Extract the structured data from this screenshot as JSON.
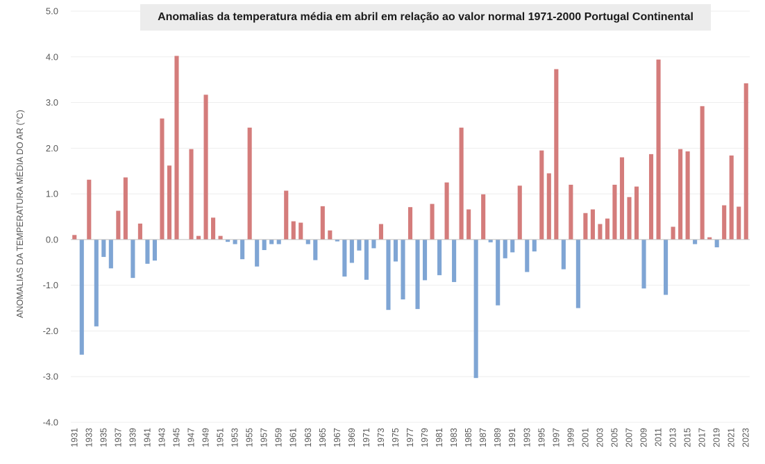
{
  "chart_data": {
    "type": "bar",
    "title": "Anomalias da temperatura média em abril em relação ao valor normal 1971-2000 Portugal Continental",
    "xlabel": "",
    "ylabel": "ANOMALIAS DA TEMPERATURA MÉDIA DO AR (°C)",
    "ylim": [
      -4.0,
      5.0
    ],
    "yticks": [
      "5.0",
      "4.0",
      "3.0",
      "2.0",
      "1.0",
      "0.0",
      "-1.0",
      "-2.0",
      "-3.0",
      "-4.0"
    ],
    "categories": [
      1931,
      1932,
      1933,
      1934,
      1935,
      1936,
      1937,
      1938,
      1939,
      1940,
      1941,
      1942,
      1943,
      1944,
      1945,
      1946,
      1947,
      1948,
      1949,
      1950,
      1951,
      1952,
      1953,
      1954,
      1955,
      1956,
      1957,
      1958,
      1959,
      1960,
      1961,
      1962,
      1963,
      1964,
      1965,
      1966,
      1967,
      1968,
      1969,
      1970,
      1971,
      1972,
      1973,
      1974,
      1975,
      1976,
      1977,
      1978,
      1979,
      1980,
      1981,
      1982,
      1983,
      1984,
      1985,
      1986,
      1987,
      1988,
      1989,
      1990,
      1991,
      1992,
      1993,
      1994,
      1995,
      1996,
      1997,
      1998,
      1999,
      2000,
      2001,
      2002,
      2003,
      2004,
      2005,
      2006,
      2007,
      2008,
      2009,
      2010,
      2011,
      2012,
      2013,
      2014,
      2015,
      2016,
      2017,
      2018,
      2019,
      2020,
      2021,
      2022,
      2023
    ],
    "values": [
      0.1,
      -2.52,
      1.31,
      -1.9,
      -0.38,
      -0.63,
      0.63,
      1.36,
      -0.84,
      0.35,
      -0.53,
      -0.46,
      2.65,
      1.62,
      4.02,
      0.0,
      1.98,
      0.08,
      3.17,
      0.48,
      0.08,
      -0.05,
      -0.1,
      -0.43,
      2.45,
      -0.59,
      -0.23,
      -0.1,
      -0.1,
      1.07,
      0.4,
      0.37,
      -0.1,
      -0.45,
      0.73,
      0.2,
      -0.04,
      -0.81,
      -0.51,
      -0.24,
      -0.88,
      -0.19,
      0.34,
      -1.54,
      -0.48,
      -1.31,
      0.71,
      -1.52,
      -0.89,
      0.78,
      -0.78,
      1.25,
      -0.93,
      2.45,
      0.66,
      -3.03,
      0.99,
      -0.06,
      -1.44,
      -0.41,
      -0.28,
      1.18,
      -0.71,
      -0.26,
      1.95,
      1.45,
      3.73,
      -0.65,
      1.2,
      -1.5,
      0.58,
      0.66,
      0.34,
      0.46,
      1.2,
      1.8,
      0.93,
      1.16,
      -1.07,
      1.87,
      3.94,
      -1.21,
      0.28,
      1.98,
      1.93,
      -0.1,
      2.92,
      0.05,
      -0.17,
      0.75,
      1.84,
      0.72,
      3.42
    ],
    "positive_color": "#d47c7b",
    "negative_color": "#7fa5d4",
    "grid": true
  }
}
